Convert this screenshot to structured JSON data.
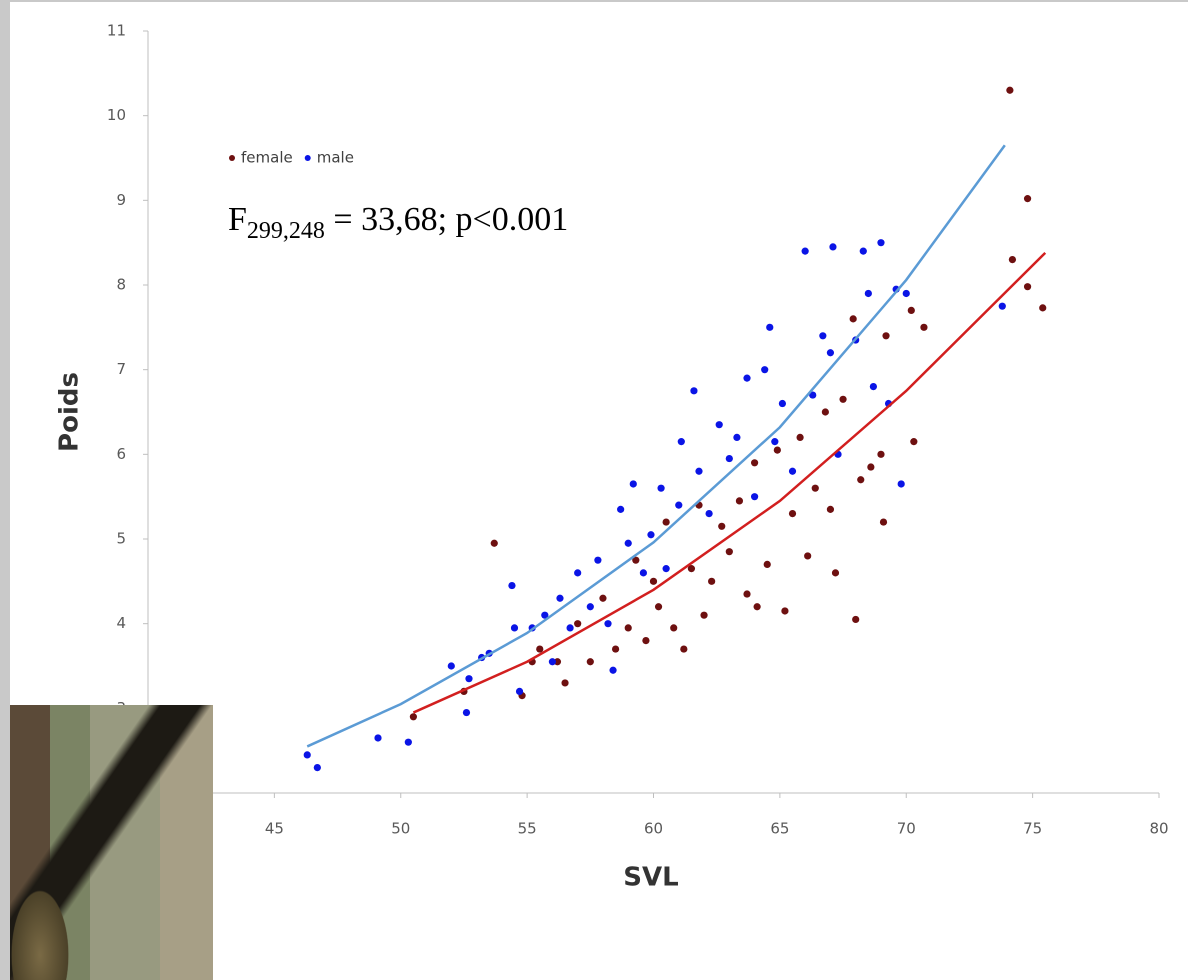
{
  "chart_data": {
    "type": "scatter",
    "xlabel": "SVL",
    "ylabel": "Poids",
    "xlim": [
      40,
      80
    ],
    "xticks": [
      45,
      50,
      55,
      60,
      65,
      70,
      75,
      80
    ],
    "ylim": [
      2,
      11
    ],
    "yticks": [
      3,
      4,
      5,
      6,
      7,
      8,
      9,
      10,
      11
    ],
    "grid": false,
    "legend": "top-left",
    "annotation": {
      "main": "F",
      "subscript": "299,248",
      "rest": " = 33,68; p<0.001"
    },
    "series": [
      {
        "name": "female",
        "color": "#6e1010",
        "x": [
          50.5,
          52.5,
          53.7,
          54.8,
          55.2,
          55.5,
          56.2,
          56.5,
          57,
          57.5,
          58,
          58.5,
          59,
          59.3,
          59.7,
          60,
          60.2,
          60.5,
          60.8,
          61.2,
          61.5,
          61.8,
          62,
          62.3,
          62.7,
          63,
          63.4,
          63.7,
          64,
          64.1,
          64.5,
          64.9,
          65.2,
          65.5,
          65.8,
          66.1,
          66.4,
          66.8,
          67,
          67.2,
          67.5,
          67.9,
          68,
          68.2,
          68.6,
          69,
          69.1,
          69.2,
          70.2,
          70.3,
          70.7,
          74.1,
          74.2,
          74.8,
          74.8,
          75.4
        ],
        "values": [
          2.9,
          3.2,
          4.95,
          3.15,
          3.55,
          3.7,
          3.55,
          3.3,
          4.0,
          3.55,
          4.3,
          3.7,
          3.95,
          4.75,
          3.8,
          4.5,
          4.2,
          5.2,
          3.95,
          3.7,
          4.65,
          5.4,
          4.1,
          4.5,
          5.15,
          4.85,
          5.45,
          4.35,
          5.9,
          4.2,
          4.7,
          6.05,
          4.15,
          5.3,
          6.2,
          4.8,
          5.6,
          6.5,
          5.35,
          4.6,
          6.65,
          7.6,
          4.05,
          5.7,
          5.85,
          6.0,
          5.2,
          7.4,
          7.7,
          6.15,
          7.5,
          10.3,
          8.3,
          9.02,
          7.98,
          7.73
        ]
      },
      {
        "name": "male",
        "color": "#0a14e6",
        "x": [
          46.3,
          46.7,
          49.1,
          50.3,
          52,
          52.6,
          52.7,
          53.2,
          53.5,
          54.4,
          54.5,
          54.7,
          55.2,
          55.7,
          56,
          56.3,
          56.7,
          57,
          57.5,
          57.8,
          58.2,
          58.4,
          58.7,
          59,
          59.2,
          59.6,
          59.9,
          60.3,
          60.5,
          61,
          61.1,
          61.6,
          61.8,
          62.2,
          62.6,
          63,
          63.3,
          63.7,
          64,
          64.4,
          64.6,
          64.8,
          65.1,
          65.5,
          66,
          66.3,
          66.7,
          67,
          67.1,
          67.3,
          68,
          68.3,
          68.5,
          68.7,
          69,
          69.3,
          69.6,
          69.8,
          70,
          73.8
        ],
        "values": [
          2.45,
          2.3,
          2.65,
          2.6,
          3.5,
          2.95,
          3.35,
          3.6,
          3.65,
          4.45,
          3.95,
          3.2,
          3.95,
          4.1,
          3.55,
          4.3,
          3.95,
          4.6,
          4.2,
          4.75,
          4.0,
          3.45,
          5.35,
          4.95,
          5.65,
          4.6,
          5.05,
          5.6,
          4.65,
          5.4,
          6.15,
          6.75,
          5.8,
          5.3,
          6.35,
          5.95,
          6.2,
          6.9,
          5.5,
          7.0,
          7.5,
          6.15,
          6.6,
          5.8,
          8.4,
          6.7,
          7.4,
          7.2,
          8.45,
          6.0,
          7.35,
          8.4,
          7.9,
          6.8,
          8.5,
          6.6,
          7.95,
          5.65,
          7.9,
          7.75
        ]
      }
    ],
    "trendlines": [
      {
        "color": "#d21f1f",
        "x": [
          50.5,
          55,
          60,
          65,
          70,
          75.5
        ],
        "values": [
          2.95,
          3.55,
          4.4,
          5.45,
          6.75,
          8.38
        ]
      },
      {
        "color": "#5b9bd5",
        "x": [
          46.3,
          50,
          55,
          60,
          65,
          70,
          73.9
        ],
        "values": [
          2.55,
          3.05,
          3.89,
          4.96,
          6.32,
          8.06,
          9.65
        ]
      }
    ]
  }
}
